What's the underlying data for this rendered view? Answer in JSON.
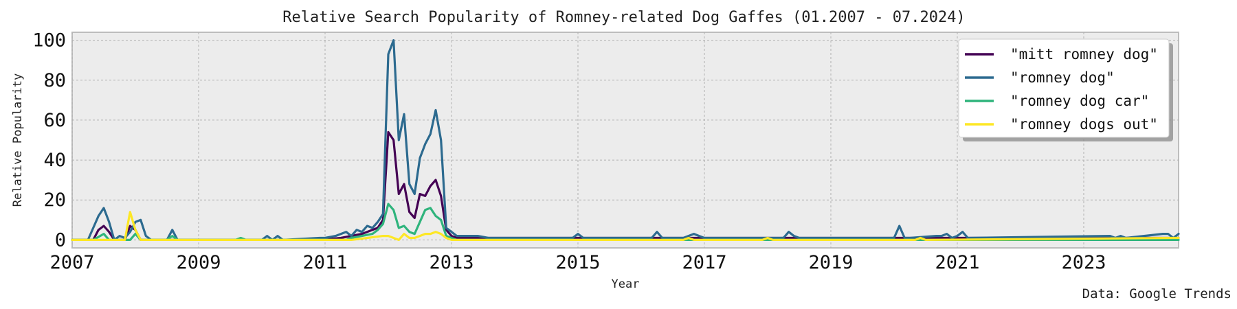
{
  "chart_data": {
    "type": "line",
    "title": "Relative Search Popularity of Romney-related Dog Gaffes (01.2007 - 07.2024)",
    "xlabel": "Year",
    "ylabel": "Relative Popularity",
    "source": "Data: Google Trends",
    "xlim": [
      "2007-01",
      "2024-07"
    ],
    "ylim": [
      -4,
      104
    ],
    "x_ticks": [
      "2007",
      "2009",
      "2011",
      "2013",
      "2015",
      "2017",
      "2019",
      "2021",
      "2023"
    ],
    "y_ticks": [
      0,
      20,
      40,
      60,
      80,
      100
    ],
    "grid": true,
    "legend_position": "top-right",
    "series": [
      {
        "name": "\"mitt romney dog\"",
        "color": "#440154",
        "points": [
          [
            "2007-01",
            0
          ],
          [
            "2007-05",
            0
          ],
          [
            "2007-06",
            5
          ],
          [
            "2007-07",
            7
          ],
          [
            "2007-08",
            4
          ],
          [
            "2007-09",
            0
          ],
          [
            "2007-10",
            0
          ],
          [
            "2007-11",
            0
          ],
          [
            "2007-12",
            7
          ],
          [
            "2008-01",
            5
          ],
          [
            "2008-02",
            0
          ],
          [
            "2008-06",
            0
          ],
          [
            "2010-12",
            0
          ],
          [
            "2011-04",
            1
          ],
          [
            "2011-06",
            2
          ],
          [
            "2011-08",
            3
          ],
          [
            "2011-10",
            5
          ],
          [
            "2011-11",
            6
          ],
          [
            "2011-12",
            10
          ],
          [
            "2012-01",
            54
          ],
          [
            "2012-02",
            50
          ],
          [
            "2012-03",
            23
          ],
          [
            "2012-04",
            28
          ],
          [
            "2012-05",
            14
          ],
          [
            "2012-06",
            11
          ],
          [
            "2012-07",
            23
          ],
          [
            "2012-08",
            22
          ],
          [
            "2012-09",
            27
          ],
          [
            "2012-10",
            30
          ],
          [
            "2012-11",
            22
          ],
          [
            "2012-12",
            5
          ],
          [
            "2013-01",
            2
          ],
          [
            "2013-02",
            1
          ],
          [
            "2013-03",
            1
          ],
          [
            "2024-07",
            1
          ]
        ]
      },
      {
        "name": "\"romney dog\"",
        "color": "#2c6a8f",
        "points": [
          [
            "2007-01",
            0
          ],
          [
            "2007-04",
            0
          ],
          [
            "2007-06",
            12
          ],
          [
            "2007-07",
            16
          ],
          [
            "2007-08",
            9
          ],
          [
            "2007-09",
            0
          ],
          [
            "2007-10",
            2
          ],
          [
            "2007-11",
            1
          ],
          [
            "2007-12",
            4
          ],
          [
            "2008-01",
            9
          ],
          [
            "2008-02",
            10
          ],
          [
            "2008-03",
            2
          ],
          [
            "2008-04",
            0
          ],
          [
            "2008-07",
            0
          ],
          [
            "2008-08",
            5
          ],
          [
            "2008-09",
            0
          ],
          [
            "2010-01",
            0
          ],
          [
            "2010-02",
            2
          ],
          [
            "2010-03",
            0
          ],
          [
            "2010-04",
            2
          ],
          [
            "2010-05",
            0
          ],
          [
            "2010-12",
            1
          ],
          [
            "2011-01",
            1
          ],
          [
            "2011-03",
            2
          ],
          [
            "2011-05",
            4
          ],
          [
            "2011-06",
            2
          ],
          [
            "2011-07",
            5
          ],
          [
            "2011-08",
            4
          ],
          [
            "2011-09",
            7
          ],
          [
            "2011-10",
            6
          ],
          [
            "2011-11",
            9
          ],
          [
            "2011-12",
            13
          ],
          [
            "2012-01",
            93
          ],
          [
            "2012-02",
            100
          ],
          [
            "2012-03",
            50
          ],
          [
            "2012-04",
            63
          ],
          [
            "2012-05",
            28
          ],
          [
            "2012-06",
            23
          ],
          [
            "2012-07",
            41
          ],
          [
            "2012-08",
            48
          ],
          [
            "2012-09",
            53
          ],
          [
            "2012-10",
            65
          ],
          [
            "2012-11",
            50
          ],
          [
            "2012-12",
            6
          ],
          [
            "2013-01",
            4
          ],
          [
            "2013-02",
            2
          ],
          [
            "2013-06",
            2
          ],
          [
            "2013-08",
            1
          ],
          [
            "2014-12",
            1
          ],
          [
            "2015-01",
            3
          ],
          [
            "2015-02",
            1
          ],
          [
            "2016-03",
            1
          ],
          [
            "2016-04",
            4
          ],
          [
            "2016-05",
            1
          ],
          [
            "2016-09",
            1
          ],
          [
            "2016-11",
            3
          ],
          [
            "2016-12",
            2
          ],
          [
            "2017-01",
            1
          ],
          [
            "2018-04",
            1
          ],
          [
            "2018-05",
            4
          ],
          [
            "2018-06",
            2
          ],
          [
            "2018-07",
            1
          ],
          [
            "2019-12",
            1
          ],
          [
            "2020-01",
            1
          ],
          [
            "2020-02",
            7
          ],
          [
            "2020-03",
            1
          ],
          [
            "2020-04",
            1
          ],
          [
            "2020-09",
            2
          ],
          [
            "2020-10",
            2
          ],
          [
            "2020-11",
            3
          ],
          [
            "2020-12",
            1
          ],
          [
            "2021-01",
            2
          ],
          [
            "2021-02",
            4
          ],
          [
            "2021-03",
            1
          ],
          [
            "2023-06",
            2
          ],
          [
            "2023-07",
            1
          ],
          [
            "2023-08",
            2
          ],
          [
            "2023-09",
            1
          ],
          [
            "2024-04",
            3
          ],
          [
            "2024-05",
            3
          ],
          [
            "2024-06",
            1
          ],
          [
            "2024-07",
            3
          ]
        ]
      },
      {
        "name": "\"romney dog car\"",
        "color": "#2fb47c",
        "points": [
          [
            "2007-01",
            0
          ],
          [
            "2007-05",
            0
          ],
          [
            "2007-07",
            3
          ],
          [
            "2007-08",
            0
          ],
          [
            "2007-12",
            0
          ],
          [
            "2008-01",
            3
          ],
          [
            "2008-02",
            0
          ],
          [
            "2008-07",
            0
          ],
          [
            "2008-08",
            2
          ],
          [
            "2008-09",
            0
          ],
          [
            "2009-08",
            0
          ],
          [
            "2009-09",
            1
          ],
          [
            "2009-10",
            0
          ],
          [
            "2011-05",
            0
          ],
          [
            "2011-06",
            1
          ],
          [
            "2011-08",
            2
          ],
          [
            "2011-10",
            3
          ],
          [
            "2011-11",
            5
          ],
          [
            "2011-12",
            8
          ],
          [
            "2012-01",
            18
          ],
          [
            "2012-02",
            15
          ],
          [
            "2012-03",
            6
          ],
          [
            "2012-04",
            7
          ],
          [
            "2012-05",
            4
          ],
          [
            "2012-06",
            3
          ],
          [
            "2012-07",
            9
          ],
          [
            "2012-08",
            15
          ],
          [
            "2012-09",
            16
          ],
          [
            "2012-10",
            12
          ],
          [
            "2012-11",
            10
          ],
          [
            "2012-12",
            2
          ],
          [
            "2013-01",
            1
          ],
          [
            "2013-02",
            0
          ],
          [
            "2024-07",
            0
          ]
        ]
      },
      {
        "name": "\"romney dogs out\"",
        "color": "#fde725",
        "points": [
          [
            "2007-01",
            0
          ],
          [
            "2007-11",
            0
          ],
          [
            "2007-12",
            14
          ],
          [
            "2008-01",
            5
          ],
          [
            "2008-02",
            0
          ],
          [
            "2011-06",
            0
          ],
          [
            "2011-09",
            1
          ],
          [
            "2011-12",
            2
          ],
          [
            "2012-01",
            2
          ],
          [
            "2012-02",
            1
          ],
          [
            "2012-03",
            0
          ],
          [
            "2012-04",
            3
          ],
          [
            "2012-05",
            1
          ],
          [
            "2012-06",
            1
          ],
          [
            "2012-07",
            2
          ],
          [
            "2012-08",
            3
          ],
          [
            "2012-09",
            3
          ],
          [
            "2012-10",
            4
          ],
          [
            "2012-11",
            3
          ],
          [
            "2012-12",
            1
          ],
          [
            "2013-01",
            0
          ],
          [
            "2016-09",
            0
          ],
          [
            "2016-10",
            1
          ],
          [
            "2016-11",
            0
          ],
          [
            "2017-12",
            0
          ],
          [
            "2018-01",
            1
          ],
          [
            "2018-02",
            0
          ],
          [
            "2020-05",
            0
          ],
          [
            "2020-06",
            1
          ],
          [
            "2020-07",
            0
          ],
          [
            "2024-06",
            1
          ],
          [
            "2024-07",
            1
          ]
        ]
      }
    ]
  }
}
